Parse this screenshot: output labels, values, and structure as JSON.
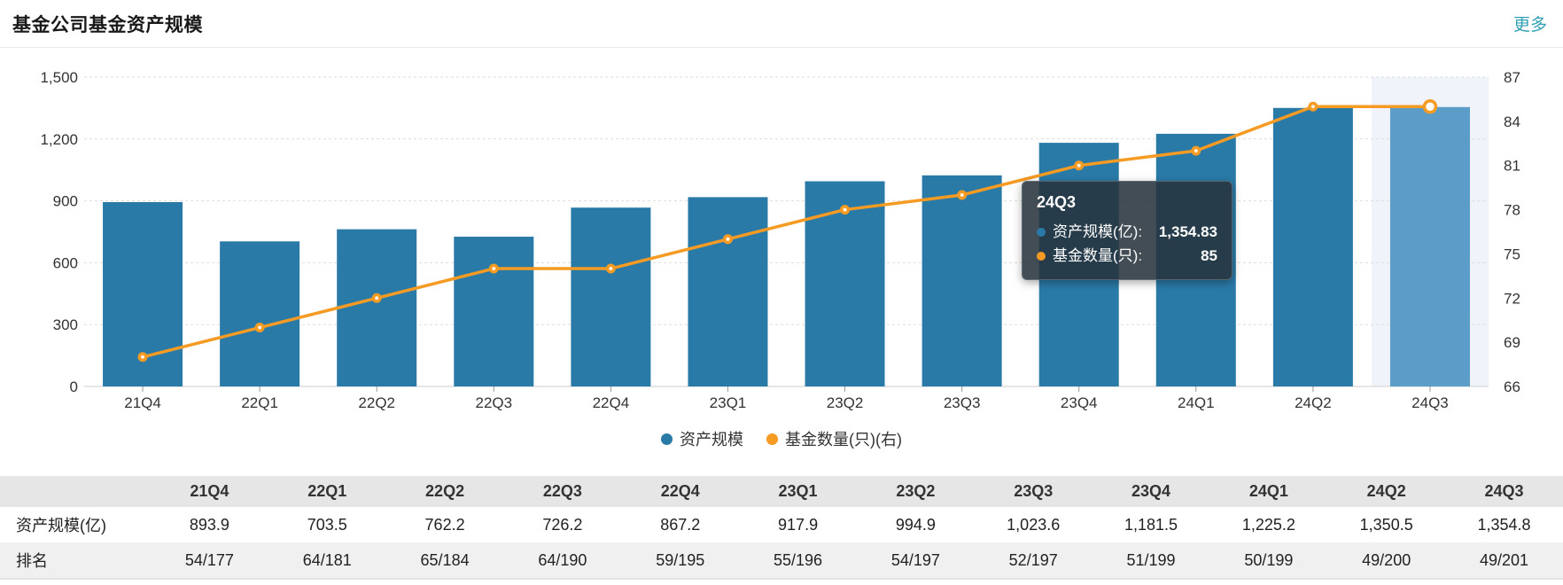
{
  "header": {
    "title": "基金公司基金资产规模",
    "more_label": "更多"
  },
  "chart_data": {
    "type": "bar+line",
    "categories": [
      "21Q4",
      "22Q1",
      "22Q2",
      "22Q3",
      "22Q4",
      "23Q1",
      "23Q2",
      "23Q3",
      "23Q4",
      "24Q1",
      "24Q2",
      "24Q3"
    ],
    "series": [
      {
        "name": "资产规模",
        "type": "bar",
        "axis": "left",
        "unit": "亿",
        "color": "#2A7AA8",
        "values": [
          893.9,
          703.5,
          762.2,
          726.2,
          867.2,
          917.9,
          994.9,
          1023.6,
          1181.5,
          1225.2,
          1350.5,
          1354.83
        ]
      },
      {
        "name": "基金数量(只)(右)",
        "type": "line",
        "axis": "right",
        "unit": "只",
        "color": "#F59A23",
        "values": [
          68,
          70,
          72,
          74,
          74,
          76,
          78,
          79,
          81,
          82,
          85,
          85
        ]
      }
    ],
    "left_axis": {
      "min": 0,
      "max": 1500,
      "step": 300,
      "tick_labels": [
        "0",
        "300",
        "600",
        "900",
        "1,200",
        "1,500"
      ]
    },
    "right_axis": {
      "min": 66,
      "max": 87,
      "step": 3,
      "tick_labels": [
        "66",
        "69",
        "72",
        "75",
        "78",
        "81",
        "84",
        "87"
      ]
    },
    "legend": [
      {
        "label": "资产规模",
        "color": "#2A7AA8"
      },
      {
        "label": "基金数量(只)(右)",
        "color": "#F59A23"
      }
    ],
    "legend_position": "bottom-center",
    "grid": "dotted-horizontal",
    "highlight": {
      "index": 11,
      "bar_color": "#5B9CC8",
      "band_color": "#F0F3F9"
    }
  },
  "tooltip": {
    "title": "24Q3",
    "rows": [
      {
        "label": "资产规模(亿):",
        "value": "1,354.83",
        "color": "#2A7AA8"
      },
      {
        "label": "基金数量(只):",
        "value": "85",
        "color": "#F59A23"
      }
    ]
  },
  "table": {
    "columns": [
      "21Q4",
      "22Q1",
      "22Q2",
      "22Q3",
      "22Q4",
      "23Q1",
      "23Q2",
      "23Q3",
      "23Q4",
      "24Q1",
      "24Q2",
      "24Q3"
    ],
    "rows": [
      {
        "label": "资产规模(亿)",
        "values": [
          "893.9",
          "703.5",
          "762.2",
          "726.2",
          "867.2",
          "917.9",
          "994.9",
          "1,023.6",
          "1,181.5",
          "1,225.2",
          "1,350.5",
          "1,354.8"
        ]
      },
      {
        "label": "排名",
        "values": [
          "54/177",
          "64/181",
          "65/184",
          "64/190",
          "59/195",
          "55/196",
          "54/197",
          "52/197",
          "51/199",
          "50/199",
          "49/200",
          "49/201"
        ]
      }
    ]
  },
  "colors": {
    "accent_link": "#32a0b4",
    "axis_line": "#cccccc",
    "gridline": "#dddddd",
    "tooltip_bg": "rgba(38,50,60,0.87)"
  }
}
